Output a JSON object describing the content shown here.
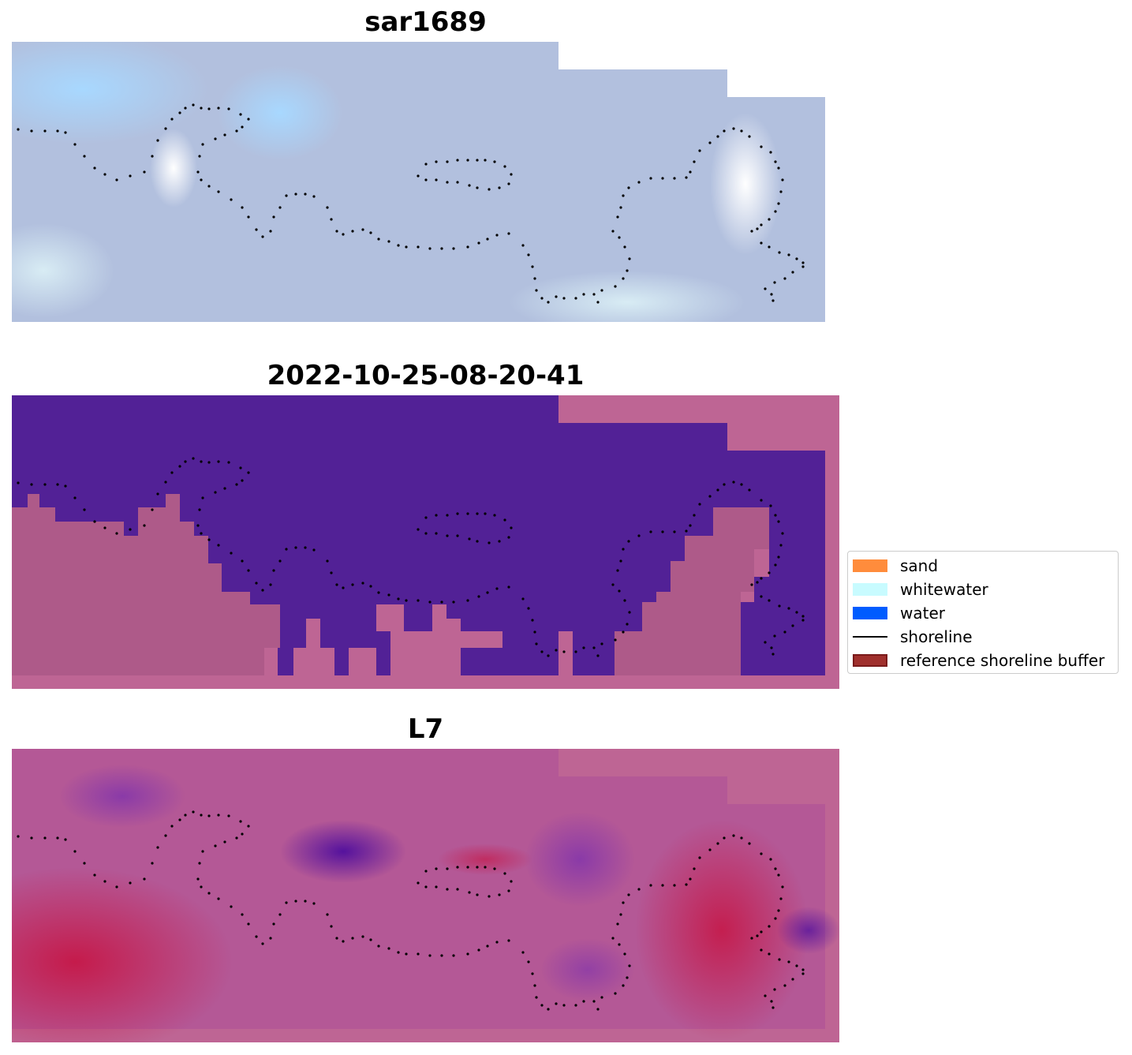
{
  "panels": [
    {
      "id": "sar",
      "title": "sar1689"
    },
    {
      "id": "classified",
      "title": "2022-10-25-08-20-41"
    },
    {
      "id": "l7",
      "title": "L7"
    }
  ],
  "legend": {
    "items": [
      {
        "label": "sand",
        "color": "#ff8c3c"
      },
      {
        "label": "whitewater",
        "color": "#c8fbff"
      },
      {
        "label": "water",
        "color": "#005cff"
      },
      {
        "label": "shoreline",
        "color": "#000000"
      },
      {
        "label": "reference shoreline buffer",
        "color": "#a0302d",
        "edge": "#7a1a1a"
      }
    ]
  },
  "colors": {
    "sar_base": "#b0bfdf",
    "water_class": "#522196",
    "land_class": "#a0527f",
    "nodata": "#be6594",
    "l7_base": "#c15a8f"
  }
}
